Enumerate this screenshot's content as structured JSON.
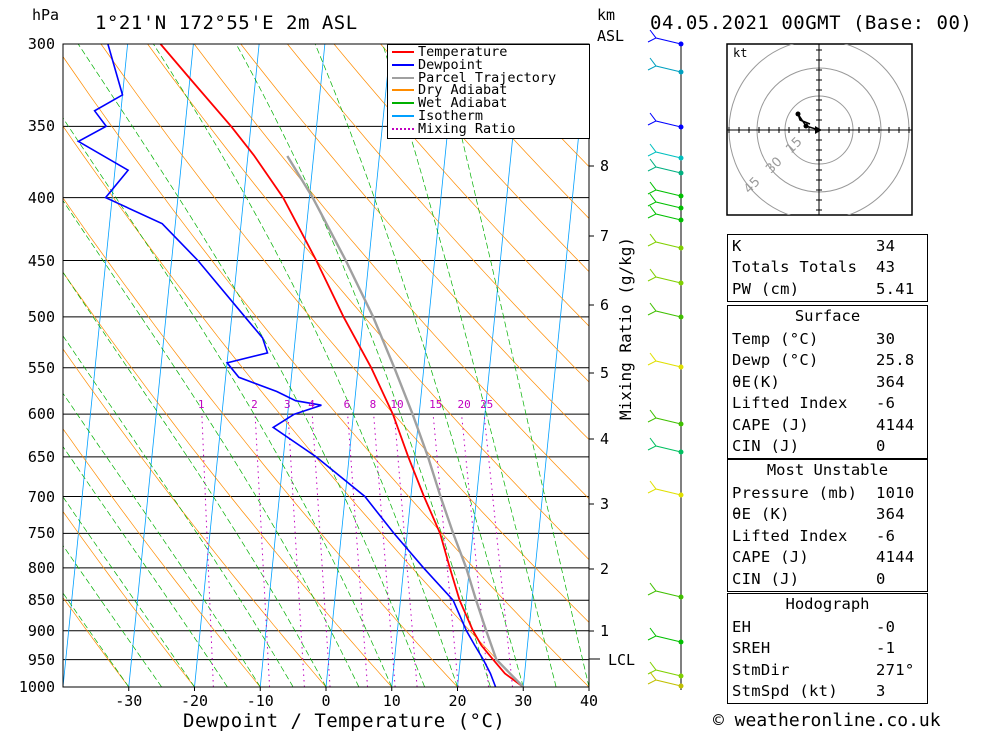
{
  "header": {
    "hpa_label": "hPa",
    "location": "1°21'N  172°55'E  2m  ASL",
    "km_label": "km",
    "asl_label": "ASL",
    "datetime": "04.05.2021  00GMT  (Base: 00)"
  },
  "pressure_axis": [
    "300",
    "350",
    "400",
    "450",
    "500",
    "550",
    "600",
    "650",
    "700",
    "750",
    "800",
    "850",
    "900",
    "950",
    "1000"
  ],
  "km_axis": [
    "8",
    "7",
    "6",
    "5",
    "4",
    "3",
    "2",
    "1"
  ],
  "lcl_label": "LCL",
  "temperature_axis": [
    "-30",
    "-20",
    "-10",
    "0",
    "10",
    "20",
    "30",
    "40"
  ],
  "x_axis_title": "Dewpoint / Temperature (°C)",
  "mixing_ratio_title": "Mixing Ratio (g/kg)",
  "mixing_ratio_labels": [
    "1",
    "2",
    "3",
    "4",
    "6",
    "8",
    "10",
    "15",
    "20",
    "25"
  ],
  "legend": [
    {
      "label": "Temperature",
      "color": "#ff0000",
      "style": "solid"
    },
    {
      "label": "Dewpoint",
      "color": "#0000ff",
      "style": "solid"
    },
    {
      "label": "Parcel Trajectory",
      "color": "#a0a0a0",
      "style": "solid"
    },
    {
      "label": "Dry Adiabat",
      "color": "#ff8c00",
      "style": "solid"
    },
    {
      "label": "Wet Adiabat",
      "color": "#00b000",
      "style": "solid"
    },
    {
      "label": "Isotherm",
      "color": "#00a0ff",
      "style": "solid"
    },
    {
      "label": "Mixing Ratio",
      "color": "#c000c0",
      "style": "dotted"
    }
  ],
  "hodograph": {
    "unit_label": "kt",
    "ring_labels": [
      "15",
      "30",
      "45"
    ]
  },
  "indices": {
    "rows": [
      [
        "K",
        "34"
      ],
      [
        "Totals Totals",
        "43"
      ],
      [
        "PW (cm)",
        "5.41"
      ]
    ]
  },
  "surface": {
    "title": "Surface",
    "rows": [
      [
        "Temp (°C)",
        "30"
      ],
      [
        "Dewp (°C)",
        "25.8"
      ],
      [
        "θE(K)",
        "364"
      ],
      [
        "Lifted Index",
        "-6"
      ],
      [
        "CAPE (J)",
        "4144"
      ],
      [
        "CIN (J)",
        "0"
      ]
    ]
  },
  "most_unstable": {
    "title": "Most Unstable",
    "rows": [
      [
        "Pressure (mb)",
        "1010"
      ],
      [
        "θE (K)",
        "364"
      ],
      [
        "Lifted Index",
        "-6"
      ],
      [
        "CAPE (J)",
        "4144"
      ],
      [
        "CIN (J)",
        "0"
      ]
    ]
  },
  "hodograph_params": {
    "title": "Hodograph",
    "rows": [
      [
        "EH",
        "-0"
      ],
      [
        "SREH",
        "-1"
      ],
      [
        "StmDir",
        "271°"
      ],
      [
        "StmSpd (kt)",
        "3"
      ]
    ]
  },
  "copyright": "© weatheronline.co.uk",
  "chart_data": {
    "type": "skew-t log-p",
    "title": "04.05.2021 00GMT (Base: 00)",
    "xlabel": "Dewpoint / Temperature (°C)",
    "ylabel": "hPa",
    "pressure_range_hpa": [
      300,
      1000
    ],
    "temperature_range_c": [
      -40,
      40
    ],
    "series": [
      {
        "name": "Temperature",
        "points": [
          [
            1000,
            30
          ],
          [
            975,
            27
          ],
          [
            950,
            25
          ],
          [
            925,
            23
          ],
          [
            900,
            21.5
          ],
          [
            850,
            19
          ],
          [
            800,
            17
          ],
          [
            750,
            15
          ],
          [
            700,
            12
          ],
          [
            650,
            9
          ],
          [
            600,
            6
          ],
          [
            550,
            2
          ],
          [
            500,
            -3
          ],
          [
            450,
            -8
          ],
          [
            400,
            -14
          ],
          [
            370,
            -19
          ],
          [
            350,
            -23
          ],
          [
            320,
            -30
          ],
          [
            300,
            -35
          ]
        ]
      },
      {
        "name": "Dewpoint",
        "points": [
          [
            1000,
            25.8
          ],
          [
            975,
            24.8
          ],
          [
            950,
            23.5
          ],
          [
            925,
            22
          ],
          [
            900,
            20.5
          ],
          [
            850,
            18
          ],
          [
            800,
            13
          ],
          [
            750,
            8
          ],
          [
            700,
            3
          ],
          [
            650,
            -5
          ],
          [
            615,
            -12
          ],
          [
            600,
            -9
          ],
          [
            590,
            -5
          ],
          [
            585,
            -9
          ],
          [
            575,
            -12
          ],
          [
            560,
            -18
          ],
          [
            545,
            -20
          ],
          [
            535,
            -14
          ],
          [
            520,
            -15
          ],
          [
            500,
            -18
          ],
          [
            450,
            -26
          ],
          [
            420,
            -32
          ],
          [
            400,
            -41
          ],
          [
            380,
            -38
          ],
          [
            360,
            -46
          ],
          [
            350,
            -42
          ],
          [
            340,
            -44
          ],
          [
            330,
            -40
          ],
          [
            300,
            -43
          ]
        ]
      },
      {
        "name": "Parcel Trajectory",
        "points": [
          [
            1000,
            30
          ],
          [
            950,
            25.5
          ],
          [
            900,
            23.5
          ],
          [
            850,
            21.5
          ],
          [
            800,
            19.5
          ],
          [
            750,
            17
          ],
          [
            700,
            14.5
          ],
          [
            650,
            12
          ],
          [
            600,
            9
          ],
          [
            550,
            5.5
          ],
          [
            500,
            1.5
          ],
          [
            450,
            -3.5
          ],
          [
            400,
            -9.5
          ],
          [
            370,
            -14
          ]
        ]
      }
    ],
    "lcl_hpa": 960,
    "wind_profile_note": "wind barbs plotted at right of diagram"
  }
}
